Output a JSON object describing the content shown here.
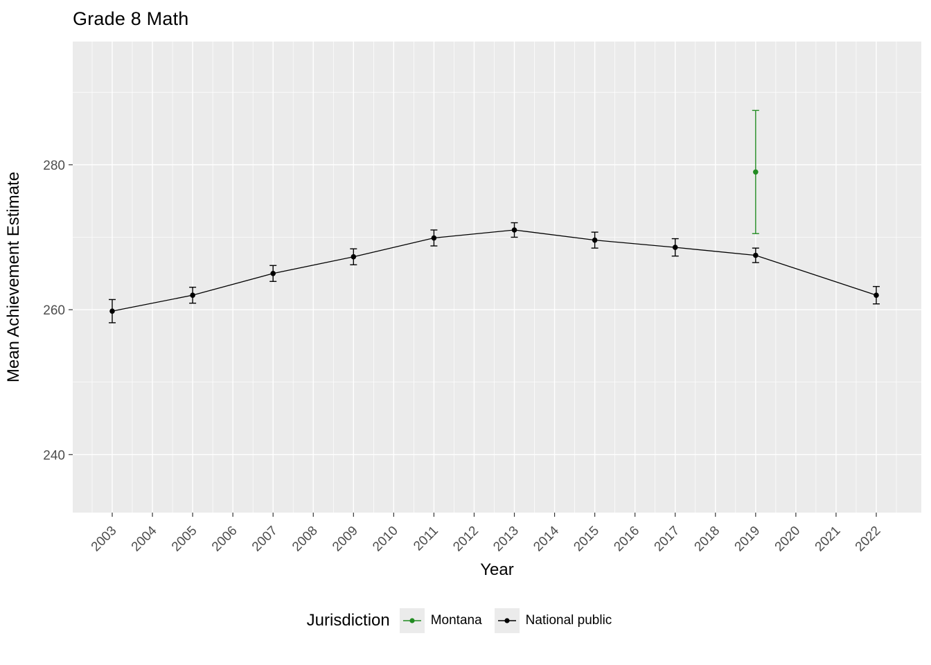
{
  "chart_data": {
    "type": "line",
    "title": "Grade 8 Math",
    "xlabel": "Year",
    "ylabel": "Mean Achievement Estimate",
    "xlim": [
      2003,
      2022
    ],
    "ylim": [
      232,
      297
    ],
    "x_ticks": [
      2003,
      2004,
      2005,
      2006,
      2007,
      2008,
      2009,
      2010,
      2011,
      2012,
      2013,
      2014,
      2015,
      2016,
      2017,
      2018,
      2019,
      2020,
      2021,
      2022
    ],
    "y_major_ticks": [
      240,
      260,
      280
    ],
    "y_minor_ticks": [
      250,
      270,
      290
    ],
    "panel_bg": "#EBEBEB",
    "grid_color": "#FFFFFF",
    "axis_text_color": "#4D4D4D",
    "tick_mark_color": "#333333",
    "legend": {
      "title": "Jurisdiction",
      "key_bg": "#EBEBEB"
    },
    "series": [
      {
        "name": "Montana",
        "color": "#228B22",
        "points": [
          {
            "x": 2019,
            "y": 279.0,
            "ymin": 270.5,
            "ymax": 287.5
          }
        ]
      },
      {
        "name": "National public",
        "color": "#000000",
        "points": [
          {
            "x": 2003,
            "y": 259.8,
            "ymin": 258.2,
            "ymax": 261.4
          },
          {
            "x": 2005,
            "y": 262.0,
            "ymin": 260.9,
            "ymax": 263.1
          },
          {
            "x": 2007,
            "y": 265.0,
            "ymin": 263.9,
            "ymax": 266.1
          },
          {
            "x": 2009,
            "y": 267.3,
            "ymin": 266.2,
            "ymax": 268.4
          },
          {
            "x": 2011,
            "y": 269.9,
            "ymin": 268.8,
            "ymax": 271.0
          },
          {
            "x": 2013,
            "y": 271.0,
            "ymin": 270.0,
            "ymax": 272.0
          },
          {
            "x": 2015,
            "y": 269.6,
            "ymin": 268.5,
            "ymax": 270.7
          },
          {
            "x": 2017,
            "y": 268.6,
            "ymin": 267.4,
            "ymax": 269.8
          },
          {
            "x": 2019,
            "y": 267.5,
            "ymin": 266.5,
            "ymax": 268.5
          },
          {
            "x": 2022,
            "y": 262.0,
            "ymin": 260.8,
            "ymax": 263.2
          }
        ]
      }
    ]
  }
}
